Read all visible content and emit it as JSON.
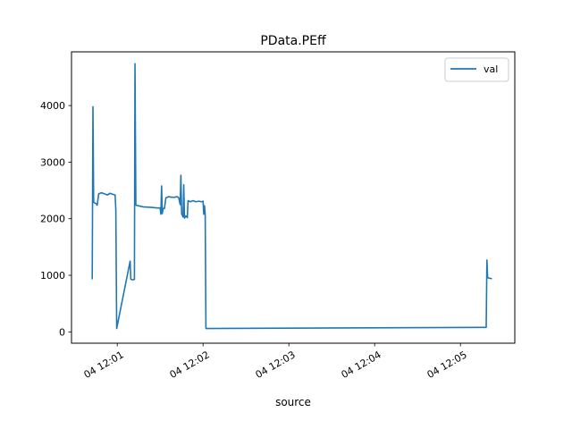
{
  "chart_data": {
    "type": "line",
    "title": "PData.PEff",
    "xlabel": "source",
    "ylabel": "",
    "xlim": [
      "12:00:28",
      "12:05:38"
    ],
    "ylim": [
      -200,
      4950
    ],
    "xticks": [
      {
        "t": "12:01:00",
        "label": "04 12:01"
      },
      {
        "t": "12:02:00",
        "label": "04 12:02"
      },
      {
        "t": "12:03:00",
        "label": "04 12:03"
      },
      {
        "t": "12:04:00",
        "label": "04 12:04"
      },
      {
        "t": "12:05:00",
        "label": "04 12:05"
      }
    ],
    "yticks": [
      0,
      1000,
      2000,
      3000,
      4000
    ],
    "legend": {
      "position": "top-right",
      "entries": [
        "val"
      ]
    },
    "grid": false,
    "series": [
      {
        "name": "val",
        "color": "#1f77b4",
        "points": [
          [
            "12:00:42.5",
            930
          ],
          [
            "12:00:43.0",
            3980
          ],
          [
            "12:00:43.5",
            2290
          ],
          [
            "12:00:45",
            2270
          ],
          [
            "12:00:46",
            2240
          ],
          [
            "12:00:47",
            2440
          ],
          [
            "12:00:49",
            2460
          ],
          [
            "12:00:51",
            2440
          ],
          [
            "12:00:53",
            2420
          ],
          [
            "12:00:55",
            2450
          ],
          [
            "12:00:57",
            2430
          ],
          [
            "12:00:58.5",
            2420
          ],
          [
            "12:00:59",
            2160
          ],
          [
            "12:00:59.6",
            60
          ],
          [
            "12:01:09",
            1250
          ],
          [
            "12:01:09.5",
            930
          ],
          [
            "12:01:11",
            920
          ],
          [
            "12:01:12",
            930
          ],
          [
            "12:01:12.4",
            4740
          ],
          [
            "12:01:13",
            2240
          ],
          [
            "12:01:18",
            2210
          ],
          [
            "12:01:24",
            2200
          ],
          [
            "12:01:28",
            2190
          ],
          [
            "12:01:30",
            2190
          ],
          [
            "12:01:30.5",
            2080
          ],
          [
            "12:01:31",
            2580
          ],
          [
            "12:01:31.5",
            2090
          ],
          [
            "12:01:32",
            2180
          ],
          [
            "12:01:33",
            2180
          ],
          [
            "12:01:34",
            2370
          ],
          [
            "12:01:36",
            2390
          ],
          [
            "12:01:38",
            2380
          ],
          [
            "12:01:40",
            2380
          ],
          [
            "12:01:42",
            2390
          ],
          [
            "12:01:43",
            2370
          ],
          [
            "12:01:44",
            2250
          ],
          [
            "12:01:44.5",
            2770
          ],
          [
            "12:01:45",
            2090
          ],
          [
            "12:01:46",
            2030
          ],
          [
            "12:01:46.5",
            2600
          ],
          [
            "12:01:47",
            2010
          ],
          [
            "12:01:48",
            2050
          ],
          [
            "12:01:49",
            2020
          ],
          [
            "12:01:49.5",
            2320
          ],
          [
            "12:01:51",
            2300
          ],
          [
            "12:01:53",
            2320
          ],
          [
            "12:01:55",
            2300
          ],
          [
            "12:01:57",
            2310
          ],
          [
            "12:01:59",
            2300
          ],
          [
            "12:02:00",
            2310
          ],
          [
            "12:02:00.5",
            2080
          ],
          [
            "12:02:01",
            2230
          ],
          [
            "12:02:01.5",
            2080
          ],
          [
            "12:02:02",
            60
          ],
          [
            "12:05:15",
            80
          ],
          [
            "12:05:18",
            80
          ],
          [
            "12:05:18.5",
            1270
          ],
          [
            "12:05:19",
            960
          ],
          [
            "12:05:20",
            950
          ],
          [
            "12:05:22",
            940
          ]
        ]
      }
    ]
  }
}
